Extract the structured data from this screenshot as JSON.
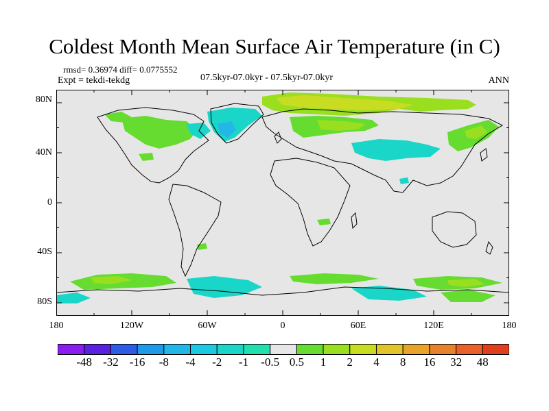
{
  "title": "Coldest Month Mean Surface Air Temperature (in C)",
  "stats": {
    "rmsd_diff": "rmsd= 0.36974 diff= 0.0775552",
    "expt": "Expt = tekdi-tekdg"
  },
  "period_label": "07.5kyr-07.0kyr - 07.5kyr-07.0kyr",
  "season": "ANN",
  "axes": {
    "lat_labels": [
      "80N",
      "40N",
      "0",
      "40S",
      "80S"
    ],
    "lon_labels": [
      "180",
      "120W",
      "60W",
      "0",
      "60E",
      "120E",
      "180"
    ]
  },
  "colorbar": {
    "colors": [
      "#8a1df0",
      "#5a21e0",
      "#2e5ce6",
      "#1f9ae8",
      "#22b7e6",
      "#1cc9e0",
      "#19d6c8",
      "#22dfae",
      "#e6e6e6",
      "#66dc30",
      "#9ade20",
      "#c8dd22",
      "#e0c42a",
      "#e8a42a",
      "#e6822c",
      "#e8602a",
      "#e03e1c"
    ],
    "labels": [
      "-48",
      "-32",
      "-16",
      "-8",
      "-4",
      "-2",
      "-1",
      "-0.5",
      "0.5",
      "1",
      "2",
      "4",
      "8",
      "16",
      "32",
      "48"
    ]
  },
  "fill_colors": {
    "background": "#e6e6e6",
    "green": "#66dc30",
    "yellow_green": "#9ade20",
    "yellow": "#c8dd22",
    "cyan": "#19d6c8",
    "light_blue": "#22b7e6"
  }
}
